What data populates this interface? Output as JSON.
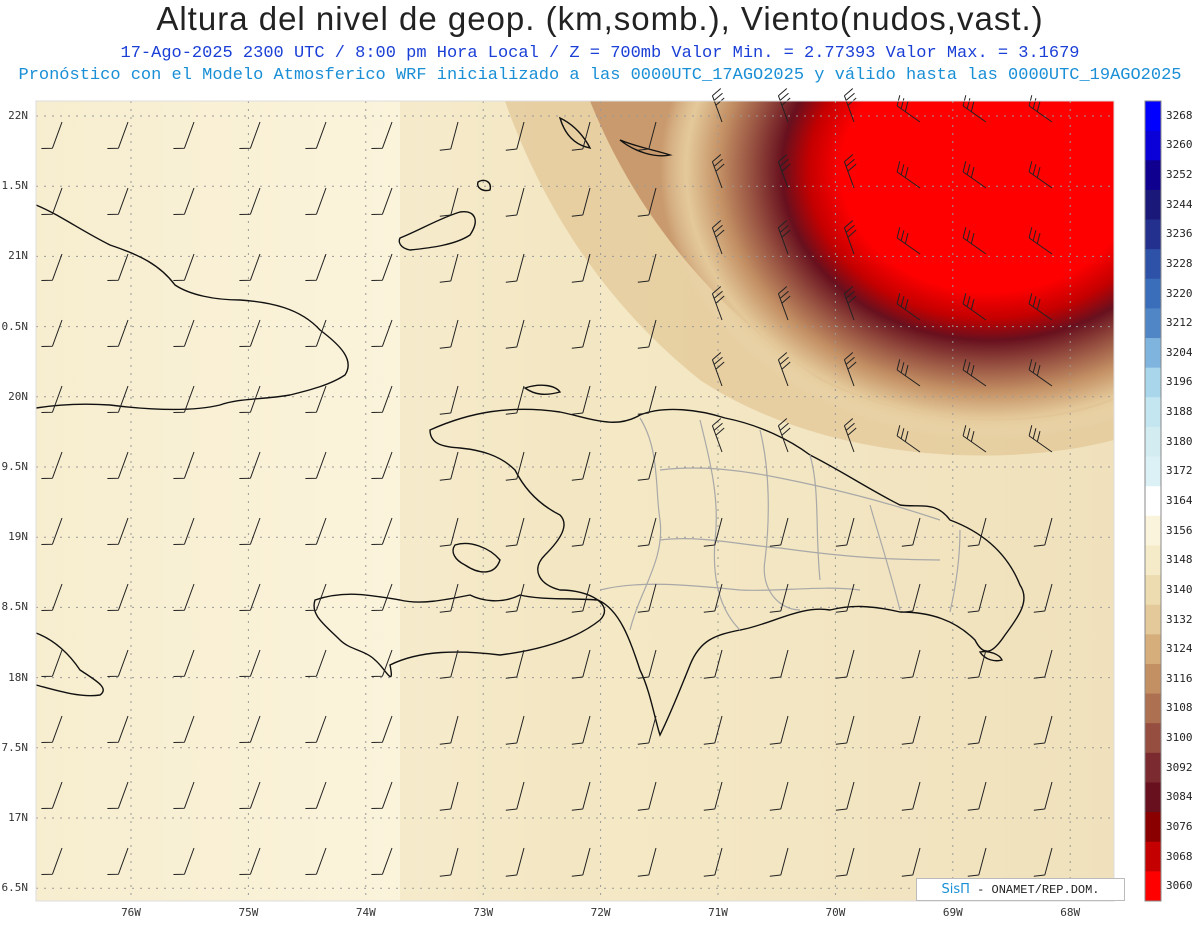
{
  "header": {
    "title": "Altura del nivel de geop. (km,somb.), Viento(nudos,vast.)",
    "subtitle": "17-Ago-2025  2300 UTC / 8:00 pm Hora Local / Z = 700mb     Valor Min. = 2.77393  Valor Max. = 3.1679",
    "model_line": "Pronóstico con el Modelo Atmosferico WRF inicializado a las 0000UTC_17AGO2025 y válido hasta las  0000UTC_19AGO2025"
  },
  "map": {
    "lat_labels": [
      "22N",
      "1.5N",
      "21N",
      "0.5N",
      "20N",
      "9.5N",
      "19N",
      "8.5N",
      "18N",
      "7.5N",
      "17N",
      "6.5N"
    ],
    "lon_labels": [
      "76W",
      "75W",
      "74W",
      "73W",
      "72W",
      "71W",
      "70W",
      "69W",
      "68W"
    ]
  },
  "colorbar": {
    "levels": [
      "3268",
      "3260",
      "3252",
      "3244",
      "3236",
      "3228",
      "3220",
      "3212",
      "3204",
      "3196",
      "3188",
      "3180",
      "3172",
      "3164",
      "3156",
      "3148",
      "3140",
      "3132",
      "3124",
      "3116",
      "3108",
      "3100",
      "3092",
      "3084",
      "3076",
      "3068",
      "3060"
    ],
    "colors": [
      "#0000ff",
      "#0a00d8",
      "#100090",
      "#1a1878",
      "#23308e",
      "#2e52a8",
      "#3a6dba",
      "#5086c6",
      "#7eb4dd",
      "#a9d6ea",
      "#c3e6f0",
      "#d2ecf2",
      "#dcf1f5",
      "#ffffff",
      "#fbf4dc",
      "#f6ebc9",
      "#eedcb1",
      "#e4c99a",
      "#d6ae7c",
      "#c39064",
      "#ad7050",
      "#954e3f",
      "#7b2a30",
      "#68101e",
      "#8a0000",
      "#c40000",
      "#ff0000"
    ]
  },
  "credit": {
    "brand": "SisΠ",
    "org": " - ONAMET/REP.DOM."
  }
}
